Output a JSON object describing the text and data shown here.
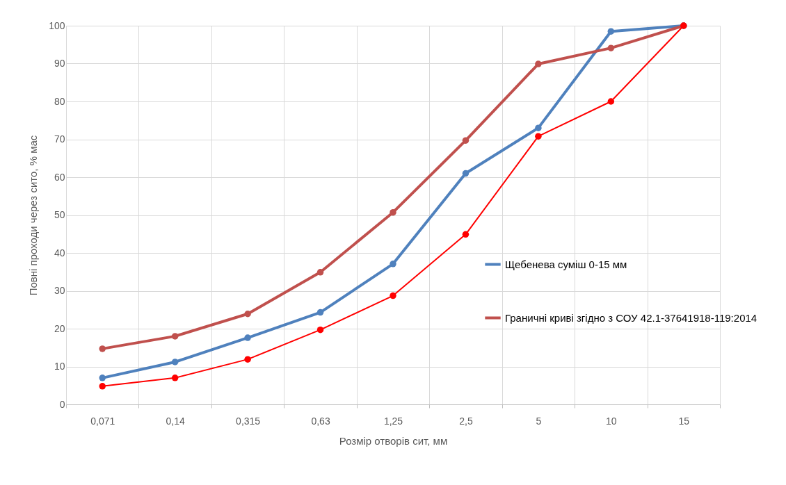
{
  "chart_data": {
    "type": "line",
    "xlabel": "Розмір отворів сит, мм",
    "ylabel": "Повні проходи через  сито, % мас",
    "categories": [
      "0,071",
      "0,14",
      "0,315",
      "0,63",
      "1,25",
      "2,5",
      "5",
      "10",
      "15"
    ],
    "series": [
      {
        "name": "Щебенева  суміш 0-15 мм",
        "color": "#4f81bd",
        "values": [
          7.0,
          11.2,
          17.6,
          24.3,
          37.1,
          61.0,
          73.0,
          98.5,
          100
        ]
      },
      {
        "name": "Граничні криві згідно з СОУ 42.1-37641918-119:2014",
        "color": "#c0504d",
        "values": [
          14.7,
          18.0,
          23.9,
          34.9,
          50.7,
          69.7,
          89.9,
          94.1,
          100
        ]
      },
      {
        "color": "#ff0000",
        "values": [
          4.8,
          7.0,
          11.9,
          19.7,
          28.7,
          44.9,
          70.8,
          80.0,
          100
        ]
      }
    ],
    "ylim": [
      0,
      100
    ],
    "yticks": [
      0,
      10,
      20,
      30,
      40,
      50,
      60,
      70,
      80,
      90,
      100
    ],
    "grid": true,
    "legend": "right",
    "marker": "circle",
    "line_style": "solid"
  }
}
